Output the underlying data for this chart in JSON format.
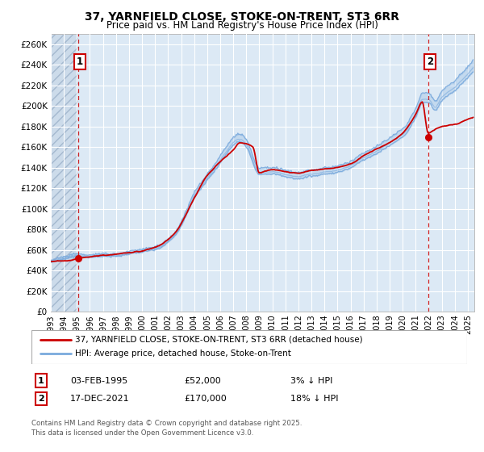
{
  "title": "37, YARNFIELD CLOSE, STOKE-ON-TRENT, ST3 6RR",
  "subtitle": "Price paid vs. HM Land Registry's House Price Index (HPI)",
  "legend_line1": "37, YARNFIELD CLOSE, STOKE-ON-TRENT, ST3 6RR (detached house)",
  "legend_line2": "HPI: Average price, detached house, Stoke-on-Trent",
  "annotation1_label": "1",
  "annotation1_date": "03-FEB-1995",
  "annotation1_price": "£52,000",
  "annotation1_hpi": "3% ↓ HPI",
  "annotation2_label": "2",
  "annotation2_date": "17-DEC-2021",
  "annotation2_price": "£170,000",
  "annotation2_hpi": "18% ↓ HPI",
  "purchase1_x": 1995.09,
  "purchase1_y": 52000,
  "purchase2_x": 2021.96,
  "purchase2_y": 170000,
  "ylim": [
    0,
    270000
  ],
  "yticks": [
    0,
    20000,
    40000,
    60000,
    80000,
    100000,
    120000,
    140000,
    160000,
    180000,
    200000,
    220000,
    240000,
    260000
  ],
  "ytick_labels": [
    "£0",
    "£20K",
    "£40K",
    "£60K",
    "£80K",
    "£100K",
    "£120K",
    "£140K",
    "£160K",
    "£180K",
    "£200K",
    "£220K",
    "£240K",
    "£260K"
  ],
  "xlim_start": 1993.0,
  "xlim_end": 2025.5,
  "bg_color": "#dce9f5",
  "grid_color": "#ffffff",
  "line_red_color": "#cc0000",
  "line_blue_color": "#7aaadd",
  "footer": "Contains HM Land Registry data © Crown copyright and database right 2025.\nThis data is licensed under the Open Government Licence v3.0."
}
